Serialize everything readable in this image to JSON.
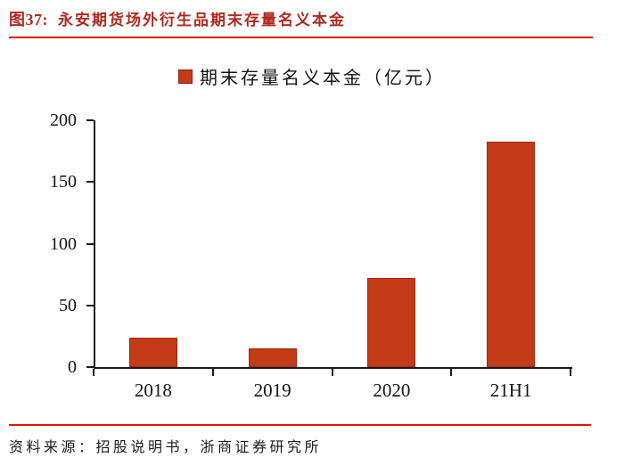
{
  "header": {
    "figure_label": "图37:",
    "title": "永安期货场外衍生品期末存量名义本金"
  },
  "chart_data": {
    "type": "bar",
    "title": "永安期货场外衍生品期末存量名义本金",
    "legend": "期末存量名义本金（亿元）",
    "legend_position": "top-center",
    "categories": [
      "2018",
      "2019",
      "2020",
      "21H1"
    ],
    "values": [
      24,
      15,
      72.5,
      182.5
    ],
    "xlabel": "",
    "ylabel": "",
    "ylim": [
      0,
      200
    ],
    "yticks": [
      0,
      50,
      100,
      150,
      200
    ],
    "grid": false
  },
  "footer": {
    "source": "资料来源：招股说明书，浙商证券研究所"
  },
  "colors": {
    "bar_red": "#C23A16",
    "title_red": "#AE2A20",
    "line_red": "#E3120B",
    "axis_black": "#1A1A1A"
  }
}
